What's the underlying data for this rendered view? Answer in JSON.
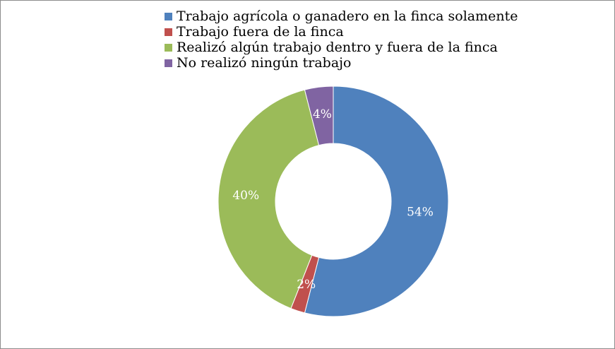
{
  "chart_data": {
    "type": "pie",
    "donut": true,
    "categories": [
      "Trabajo agrícola o ganadero en la finca solamente",
      "Trabajo fuera de la finca",
      "Realizó algún trabajo dentro y fuera de la finca",
      "No realizó ningún trabajo"
    ],
    "values": [
      54,
      2,
      40,
      4
    ],
    "data_labels": [
      "54%",
      "2%",
      "40%",
      "4%"
    ],
    "colors": [
      "#4f81bd",
      "#c0504d",
      "#9bbb59",
      "#8064a2"
    ],
    "legend_position": "top"
  }
}
